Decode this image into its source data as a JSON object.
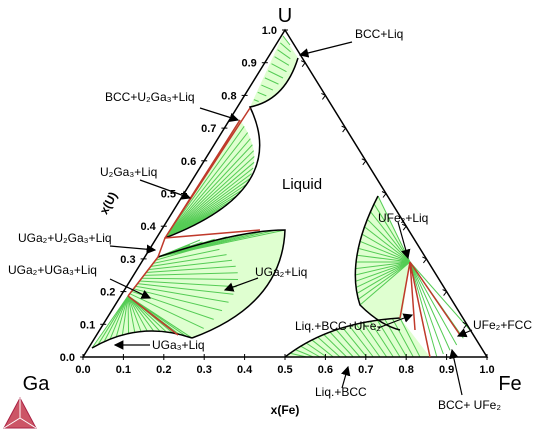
{
  "corners": {
    "top": "U",
    "left": "Ga",
    "right": "Fe"
  },
  "axes": {
    "left_title": "x(U)",
    "bottom_title": "x(Fe)"
  },
  "left_ticks": [
    "0.0",
    "0.1",
    "0.2",
    "0.3",
    "0.4",
    "0.5",
    "0.6",
    "0.7",
    "0.8",
    "0.9",
    "1.0"
  ],
  "bottom_ticks": [
    "0.0",
    "0.1",
    "0.2",
    "0.3",
    "0.4",
    "0.5",
    "0.6",
    "0.7",
    "0.8",
    "0.9",
    "1.0"
  ],
  "region_labels": [
    "BCC+Liq",
    "BCC+U₂Ga₃+Liq",
    "U₂Ga₃+Liq",
    "Liquid",
    "UGa₂+U₂Ga₃+Liq",
    "UFe₂+Liq",
    "UGa₂+UGa₃+Liq",
    "UGa₂+Liq",
    "Liq.+BCC+UFe₂",
    "UFe₂+FCC",
    "UGa₃+Liq",
    "Liq.+BCC",
    "BCC+ UFe₂"
  ]
}
